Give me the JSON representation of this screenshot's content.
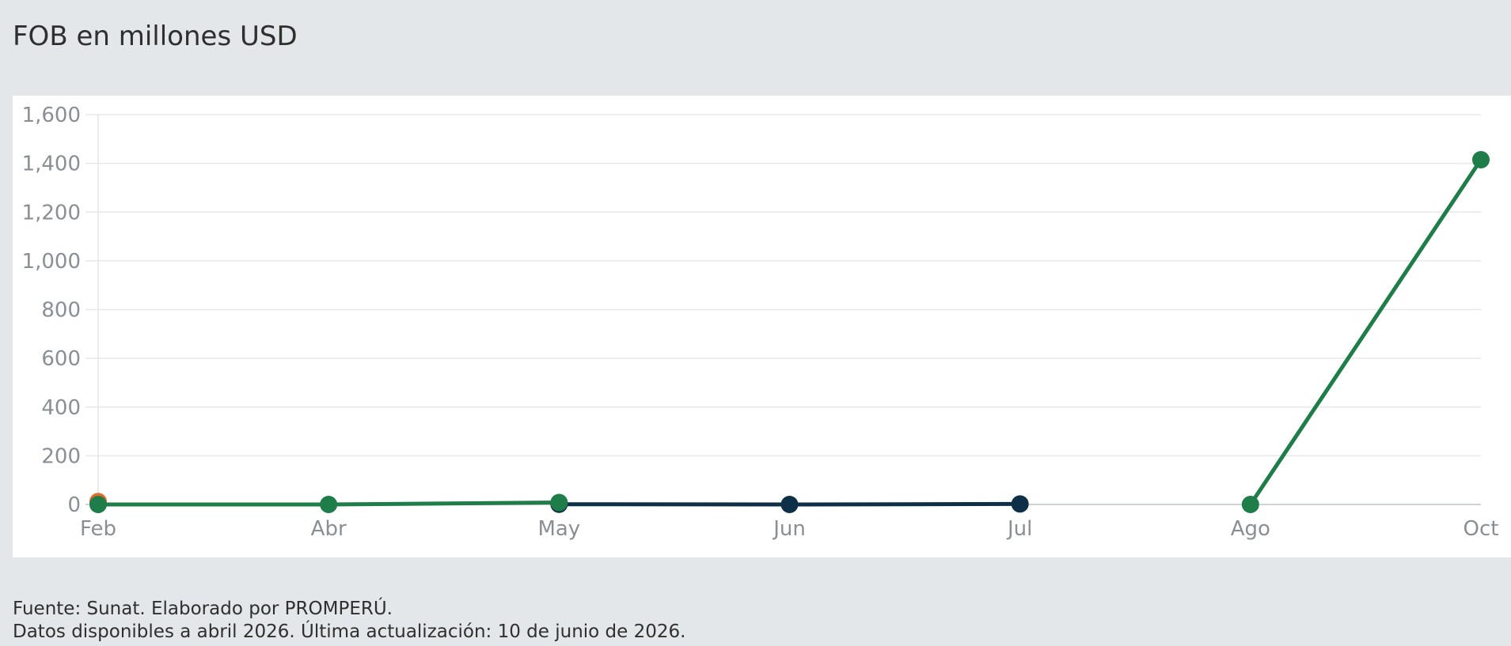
{
  "title": "FOB en millones USD",
  "footer": {
    "source": "Fuente: Sunat. Elaborado por PROMPERÚ.",
    "note": "Datos disponibles a abril 2026. Última actualización: 10 de junio de 2026."
  },
  "chart_data": {
    "type": "line",
    "title": "FOB en millones USD",
    "xlabel": "",
    "ylabel": "",
    "categories": [
      "Feb",
      "Abr",
      "May",
      "Jun",
      "Jul",
      "Ago",
      "Oct"
    ],
    "ylim": [
      0,
      1600
    ],
    "yticks": [
      0,
      200,
      400,
      600,
      800,
      1000,
      1200,
      1400,
      1600
    ],
    "ytick_labels": [
      "0",
      "200",
      "400",
      "600",
      "800",
      "1,000",
      "1,200",
      "1,400",
      "1,600"
    ],
    "grid": true,
    "legend": "none",
    "series": [
      {
        "color": "#e06c2c",
        "values": [
          12,
          null,
          null,
          null,
          null,
          null,
          null
        ]
      },
      {
        "color": "#0d2f47",
        "values": [
          null,
          null,
          1,
          0,
          2,
          null,
          null
        ]
      },
      {
        "color": "#1e7d48",
        "values": [
          0,
          0,
          8,
          null,
          null,
          0,
          1415
        ]
      }
    ]
  }
}
